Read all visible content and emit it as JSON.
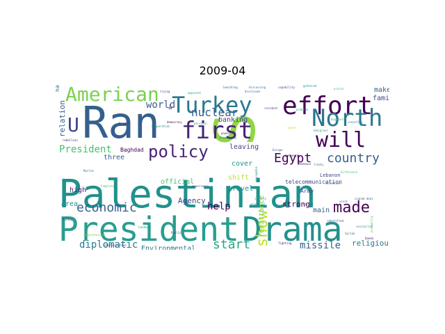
{
  "title": "2009-04",
  "palette": [
    "#440154",
    "#482475",
    "#414487",
    "#355f8d",
    "#2a788e",
    "#21918c",
    "#22a884",
    "#44bf70",
    "#7ad151",
    "#bddf26",
    "#fde725"
  ],
  "words": [
    {
      "text": "Palestinian",
      "color": "#21918c",
      "size": 56
    },
    {
      "text": "President",
      "color": "#2a9d8f",
      "size": 48
    },
    {
      "text": "Drama",
      "color": "#21918c",
      "size": 48
    },
    {
      "text": "Ran",
      "color": "#355f8d",
      "size": 62
    },
    {
      "text": "S",
      "color": "#8fd744",
      "size": 80
    },
    {
      "text": "effort",
      "color": "#440154",
      "size": 36
    },
    {
      "text": "Turkey",
      "color": "#2a788e",
      "size": 32
    },
    {
      "text": "American",
      "color": "#7ad151",
      "size": 28
    },
    {
      "text": "first",
      "color": "#482475",
      "size": 34
    },
    {
      "text": "North",
      "color": "#2a788e",
      "size": 34
    },
    {
      "text": "will",
      "color": "#440154",
      "size": 30
    },
    {
      "text": "U",
      "color": "#414487",
      "size": 28
    },
    {
      "text": "policy",
      "color": "#482475",
      "size": 24
    },
    {
      "text": "country",
      "color": "#355f8d",
      "size": 18
    },
    {
      "text": "Egypt",
      "color": "#440154",
      "size": 18
    },
    {
      "text": "made",
      "color": "#440154",
      "size": 22
    },
    {
      "text": "show",
      "color": "#bddf26",
      "size": 22
    },
    {
      "text": "start",
      "color": "#22a884",
      "size": 18
    },
    {
      "text": "economic",
      "color": "#355f8d",
      "size": 18
    },
    {
      "text": "diplomatic",
      "color": "#2a788e",
      "size": 14
    },
    {
      "text": "nuclear",
      "color": "#355f8d",
      "size": 16
    },
    {
      "text": "world",
      "color": "#355f8d",
      "size": 14
    },
    {
      "text": "President",
      "color": "#44bf70",
      "size": 14
    },
    {
      "text": "missile",
      "color": "#355f8d",
      "size": 14
    },
    {
      "text": "religious",
      "color": "#2a788e",
      "size": 11
    },
    {
      "text": "help",
      "color": "#440154",
      "size": 14
    },
    {
      "text": "Agency",
      "color": "#414487",
      "size": 11
    },
    {
      "text": "Environmental",
      "color": "#2a788e",
      "size": 10
    },
    {
      "text": "strong",
      "color": "#440154",
      "size": 11
    },
    {
      "text": "main",
      "color": "#355f8d",
      "size": 10
    },
    {
      "text": "family",
      "color": "#414487",
      "size": 10
    },
    {
      "text": "make",
      "color": "#355f8d",
      "size": 10
    },
    {
      "text": "leaving",
      "color": "#414487",
      "size": 10
    },
    {
      "text": "banking",
      "color": "#414487",
      "size": 10
    },
    {
      "text": "official",
      "color": "#44bf70",
      "size": 10
    },
    {
      "text": "travel",
      "color": "#21918c",
      "size": 10
    },
    {
      "text": "cover",
      "color": "#21918c",
      "size": 10
    },
    {
      "text": "shift",
      "color": "#bddf26",
      "size": 10
    },
    {
      "text": "three",
      "color": "#355f8d",
      "size": 10
    },
    {
      "text": "high",
      "color": "#482475",
      "size": 10
    },
    {
      "text": "area",
      "color": "#21918c",
      "size": 10
    },
    {
      "text": "Baghdad",
      "color": "#440154",
      "size": 8
    },
    {
      "text": "telecommunication",
      "color": "#414487",
      "size": 8
    },
    {
      "text": "remittance",
      "color": "#7ad151",
      "size": 10
    },
    {
      "text": "Army",
      "color": "#414487",
      "size": 8
    },
    {
      "text": "relation",
      "color": "#355f8d",
      "size": 11
    },
    {
      "text": "Lebanon",
      "color": "#414487",
      "size": 7
    },
    {
      "text": "ha",
      "color": "#2a788e",
      "size": 8
    },
    {
      "text": "à",
      "color": "#482475",
      "size": 9
    },
    {
      "text": "capability",
      "color": "#414487",
      "size": 4
    },
    {
      "text": "praise",
      "color": "#44bf70",
      "size": 4
    },
    {
      "text": "launching",
      "color": "#355f8d",
      "size": 4
    },
    {
      "text": "discussing",
      "color": "#2a788e",
      "size": 4
    },
    {
      "text": "trying",
      "color": "#414487",
      "size": 4
    },
    {
      "text": "democracy",
      "color": "#440154",
      "size": 4
    },
    {
      "text": "Cooperation",
      "color": "#21918c",
      "size": 4
    },
    {
      "text": "personal",
      "color": "#22a884",
      "size": 4
    },
    {
      "text": "powerful",
      "color": "#482475",
      "size": 4
    },
    {
      "text": "resident",
      "color": "#414487",
      "size": 4
    },
    {
      "text": "Europe",
      "color": "#355f8d",
      "size": 4
    },
    {
      "text": "Protection",
      "color": "#2a788e",
      "size": 4
    },
    {
      "text": "problem",
      "color": "#21918c",
      "size": 4
    },
    {
      "text": "Baghdadi",
      "color": "#44bf70",
      "size": 4
    },
    {
      "text": "immigrant",
      "color": "#22a884",
      "size": 4
    },
    {
      "text": "Authority",
      "color": "#440154",
      "size": 4
    },
    {
      "text": "Mahmoud",
      "color": "#414487",
      "size": 4
    },
    {
      "text": "Abraham",
      "color": "#414487",
      "size": 4
    },
    {
      "text": "rebellion",
      "color": "#482475",
      "size": 4
    },
    {
      "text": "disclosed",
      "color": "#355f8d",
      "size": 4
    },
    {
      "text": "Muslim",
      "color": "#2a788e",
      "size": 4
    },
    {
      "text": "ceasefire",
      "color": "#21918c",
      "size": 4
    },
    {
      "text": "landmark",
      "color": "#22a884",
      "size": 4
    },
    {
      "text": "Complete",
      "color": "#44bf70",
      "size": 4
    },
    {
      "text": "Public",
      "color": "#414487",
      "size": 4
    },
    {
      "text": "fighting",
      "color": "#482475",
      "size": 4
    },
    {
      "text": "Syrian",
      "color": "#355f8d",
      "size": 4
    },
    {
      "text": "secularism",
      "color": "#21918c",
      "size": 4
    },
    {
      "text": "prosperity",
      "color": "#44bf70",
      "size": 4
    },
    {
      "text": "identified",
      "color": "#414487",
      "size": 4
    },
    {
      "text": "essential",
      "color": "#2a788e",
      "size": 4
    },
    {
      "text": "navigable",
      "color": "#21918c",
      "size": 4
    },
    {
      "text": "liberalization",
      "color": "#414487",
      "size": 4
    },
    {
      "text": "comprehensive",
      "color": "#7ad151",
      "size": 4
    },
    {
      "text": "Turkey",
      "color": "#482475",
      "size": 4
    },
    {
      "text": "signed deal",
      "color": "#355f8d",
      "size": 4
    },
    {
      "text": "killed",
      "color": "#2a788e",
      "size": 4
    },
    {
      "text": "satisfy",
      "color": "#22a884",
      "size": 4
    },
    {
      "text": "difference",
      "color": "#44bf70",
      "size": 4
    },
    {
      "text": "attention",
      "color": "#355f8d",
      "size": 4
    },
    {
      "text": "experience",
      "color": "#414487",
      "size": 4
    },
    {
      "text": "gathered",
      "color": "#21918c",
      "size": 4
    },
    {
      "text": "apparent",
      "color": "#22a884",
      "size": 4
    },
    {
      "text": "spent",
      "color": "#bddf26",
      "size": 4
    },
    {
      "text": "treaty",
      "color": "#2a788e",
      "size": 4
    },
    {
      "text": "visit",
      "color": "#414487",
      "size": 4
    },
    {
      "text": "Qaeda",
      "color": "#482475",
      "size": 4
    }
  ]
}
